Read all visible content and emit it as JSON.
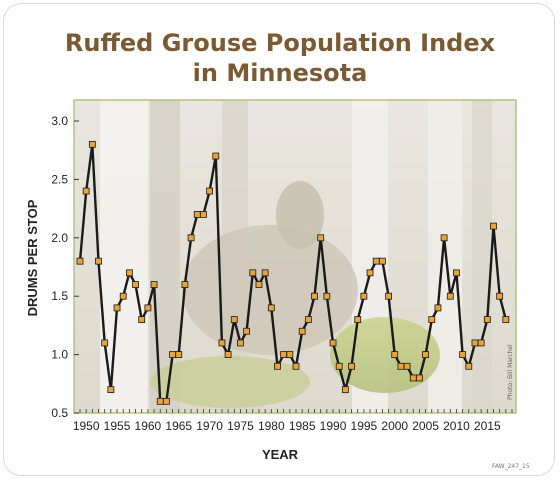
{
  "title_line1": "Ruffed Grouse Population Index",
  "title_line2": "in Minnesota",
  "photo_credit": "Photo: Bill Marchel",
  "figure_code": "FAW_247_15",
  "colors": {
    "title": "#7a5a32",
    "line": "#1a1a1a",
    "marker_fill": "#e8a43a",
    "marker_stroke": "#1a1a1a",
    "plot_border": "#a8c27a"
  },
  "chart_data": {
    "type": "line",
    "title": "Ruffed Grouse Population Index in Minnesota",
    "xlabel": "YEAR",
    "ylabel": "DRUMS PER STOP",
    "xlim": [
      1949,
      2019
    ],
    "ylim": [
      0.5,
      3.0
    ],
    "xticks": [
      1950,
      1955,
      1960,
      1965,
      1970,
      1975,
      1980,
      1985,
      1990,
      1995,
      2000,
      2005,
      2010,
      2015
    ],
    "yticks": [
      0.5,
      1.0,
      1.5,
      2.0,
      2.5,
      3.0
    ],
    "ytick_labels": [
      "0.5",
      "1.0",
      "1.5",
      "2.0",
      "2.5",
      "3.0"
    ],
    "grid": false,
    "series": [
      {
        "x": [
          1949,
          1950,
          1951,
          1952,
          1953,
          1954,
          1955,
          1956,
          1957,
          1958,
          1959,
          1960,
          1961,
          1962,
          1963,
          1964,
          1965,
          1966,
          1967,
          1968,
          1969,
          1970,
          1971,
          1972,
          1973,
          1974,
          1975,
          1976,
          1977,
          1978,
          1979,
          1980,
          1981,
          1982,
          1983,
          1984,
          1985,
          1986,
          1987,
          1988,
          1989,
          1990,
          1991,
          1992,
          1993,
          1994,
          1995,
          1996,
          1997,
          1998,
          1999,
          2000,
          2001,
          2002,
          2003,
          2004,
          2005,
          2006,
          2007,
          2008,
          2009,
          2010,
          2011,
          2012,
          2013,
          2014,
          2015,
          2016,
          2017,
          2018
        ],
        "y": [
          1.8,
          2.4,
          2.8,
          1.8,
          1.1,
          0.7,
          1.4,
          1.5,
          1.7,
          1.6,
          1.3,
          1.4,
          1.6,
          0.6,
          0.6,
          1.0,
          1.0,
          1.6,
          2.0,
          2.2,
          2.2,
          2.4,
          2.7,
          1.1,
          1.0,
          1.3,
          1.1,
          1.2,
          1.7,
          1.6,
          1.7,
          1.4,
          0.9,
          1.0,
          1.0,
          0.9,
          1.2,
          1.3,
          1.5,
          2.0,
          1.5,
          1.1,
          0.9,
          0.7,
          0.9,
          1.3,
          1.5,
          1.7,
          1.8,
          1.8,
          1.5,
          1.0,
          0.9,
          0.9,
          0.8,
          0.8,
          1.0,
          1.3,
          1.4,
          2.0,
          1.5,
          1.7,
          1.0,
          0.9,
          1.1,
          1.1,
          1.3,
          2.1,
          1.5,
          1.3
        ]
      }
    ]
  }
}
